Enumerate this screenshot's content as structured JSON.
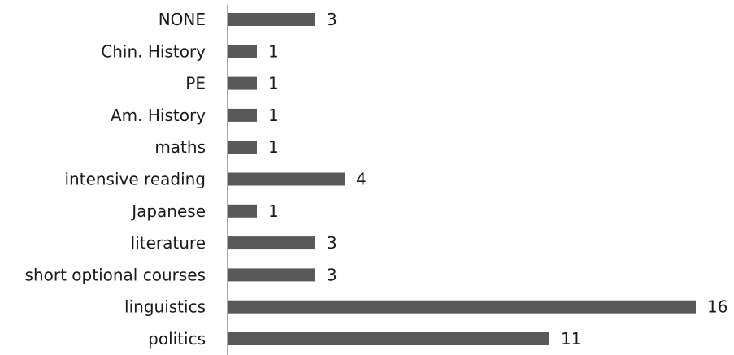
{
  "chart_data": {
    "type": "bar",
    "orientation": "horizontal",
    "categories": [
      "NONE",
      "Chin. History",
      "PE",
      "Am. History",
      "maths",
      "intensive reading",
      "Japanese",
      "literature",
      "short optional courses",
      "linguistics",
      "politics"
    ],
    "values": [
      3,
      1,
      1,
      1,
      1,
      4,
      1,
      3,
      3,
      16,
      11
    ],
    "title": "",
    "xlabel": "",
    "ylabel": "",
    "xlim": [
      0,
      16
    ],
    "grid": false,
    "legend": "none",
    "bar_color": "#595959",
    "axis_color": "#8c8c8c",
    "text_color": "#1a1a1a"
  }
}
